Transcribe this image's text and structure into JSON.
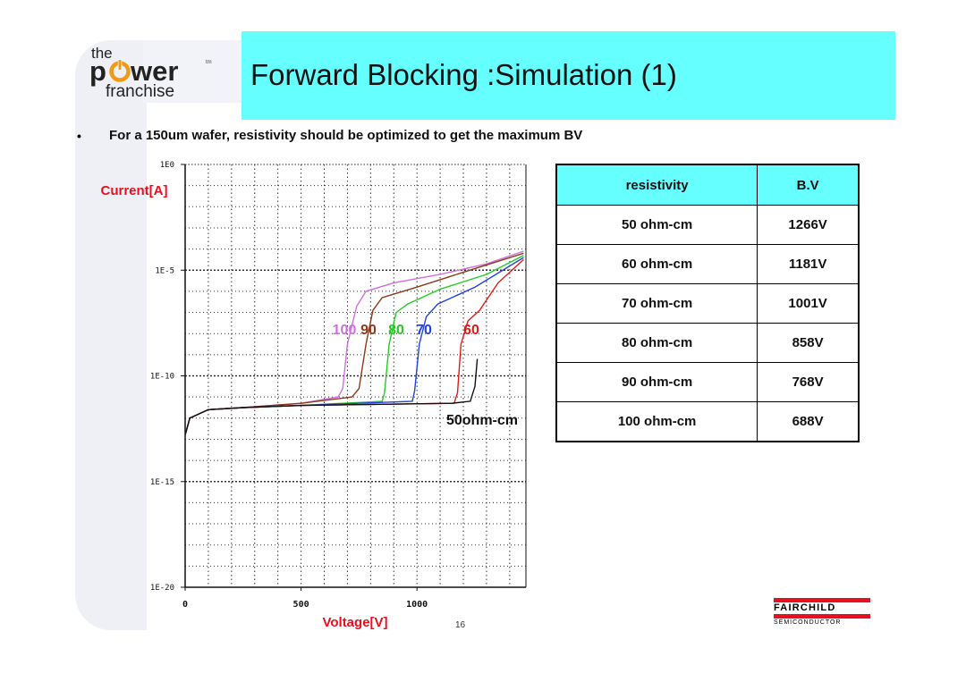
{
  "logo": {
    "line1": "the",
    "line2_a": "p",
    "line2_b": "wer",
    "line3": "franchise",
    "tm": "tm"
  },
  "title": "Forward Blocking :Simulation (1)",
  "bullet": {
    "marker": "•",
    "text": "For a 150um wafer, resistivity should be optimized to get the maximum BV"
  },
  "table": {
    "headers": [
      "resistivity",
      "B.V"
    ],
    "rows": [
      [
        "50 ohm-cm",
        "1266V"
      ],
      [
        "60 ohm-cm",
        "1181V"
      ],
      [
        "70 ohm-cm",
        "1001V"
      ],
      [
        "80 ohm-cm",
        "858V"
      ],
      [
        "90 ohm-cm",
        "768V"
      ],
      [
        "100 ohm-cm",
        "688V"
      ]
    ]
  },
  "page_number": "16",
  "fairchild": {
    "name": "FAIRCHILD",
    "sub": "SEMICONDUCTOR"
  },
  "colors": {
    "title_bg": "#66ffff",
    "axis_label": "#e8101e",
    "brand_red": "#e8101e"
  },
  "chart_data": {
    "type": "line",
    "xlabel": "Voltage[V]",
    "ylabel": "Current[A]",
    "x_ticks": [
      "0",
      "500",
      "1000"
    ],
    "y_ticks": [
      "1E0",
      "1E-5",
      "1E-10",
      "1E-15",
      "1E-20"
    ],
    "xlim": [
      0,
      1470
    ],
    "ylim_log10": [
      -20,
      0
    ],
    "grid": true,
    "y_scale": "log",
    "annotation": "50ohm-cm",
    "series": [
      {
        "name": "100",
        "color": "#d070e0",
        "points": [
          [
            0,
            -12.8
          ],
          [
            20,
            -12
          ],
          [
            100,
            -11.6
          ],
          [
            250,
            -11.5
          ],
          [
            500,
            -11.3
          ],
          [
            660,
            -11.0
          ],
          [
            680,
            -10.6
          ],
          [
            700,
            -8.5
          ],
          [
            740,
            -6.7
          ],
          [
            780,
            -6.0
          ],
          [
            900,
            -5.6
          ],
          [
            1100,
            -5.2
          ],
          [
            1300,
            -4.7
          ],
          [
            1460,
            -4.1
          ]
        ]
      },
      {
        "name": "90",
        "color": "#8b3a1a",
        "points": [
          [
            0,
            -12.8
          ],
          [
            20,
            -12
          ],
          [
            100,
            -11.6
          ],
          [
            250,
            -11.5
          ],
          [
            500,
            -11.3
          ],
          [
            720,
            -11.0
          ],
          [
            750,
            -10.6
          ],
          [
            780,
            -8.5
          ],
          [
            810,
            -6.9
          ],
          [
            850,
            -6.3
          ],
          [
            1000,
            -5.8
          ],
          [
            1200,
            -5.1
          ],
          [
            1460,
            -4.2
          ]
        ]
      },
      {
        "name": "80",
        "color": "#22cc22",
        "points": [
          [
            0,
            -12.8
          ],
          [
            20,
            -12
          ],
          [
            100,
            -11.6
          ],
          [
            250,
            -11.5
          ],
          [
            500,
            -11.4
          ],
          [
            850,
            -11.2
          ],
          [
            860,
            -10.8
          ],
          [
            880,
            -8.5
          ],
          [
            910,
            -7.0
          ],
          [
            960,
            -6.6
          ],
          [
            1100,
            -5.9
          ],
          [
            1300,
            -5.2
          ],
          [
            1460,
            -4.3
          ]
        ]
      },
      {
        "name": "70",
        "color": "#2244dd",
        "points": [
          [
            0,
            -12.8
          ],
          [
            20,
            -12
          ],
          [
            100,
            -11.6
          ],
          [
            250,
            -11.5
          ],
          [
            500,
            -11.4
          ],
          [
            980,
            -11.2
          ],
          [
            990,
            -10.7
          ],
          [
            1010,
            -8.5
          ],
          [
            1040,
            -7.2
          ],
          [
            1090,
            -6.6
          ],
          [
            1250,
            -5.8
          ],
          [
            1460,
            -4.4
          ]
        ]
      },
      {
        "name": "60",
        "color": "#e21a1a",
        "points": [
          [
            0,
            -12.8
          ],
          [
            20,
            -12
          ],
          [
            100,
            -11.6
          ],
          [
            250,
            -11.5
          ],
          [
            500,
            -11.4
          ],
          [
            1160,
            -11.3
          ],
          [
            1175,
            -10.8
          ],
          [
            1190,
            -8.5
          ],
          [
            1220,
            -7.4
          ],
          [
            1270,
            -6.9
          ],
          [
            1350,
            -5.6
          ],
          [
            1460,
            -4.5
          ]
        ]
      },
      {
        "name": "50ohm-cm",
        "color": "#111111",
        "points": [
          [
            0,
            -12.8
          ],
          [
            20,
            -12
          ],
          [
            100,
            -11.6
          ],
          [
            250,
            -11.5
          ],
          [
            500,
            -11.4
          ],
          [
            1150,
            -11.3
          ],
          [
            1230,
            -11.2
          ],
          [
            1250,
            -10.5
          ],
          [
            1260,
            -9.2
          ]
        ]
      }
    ]
  }
}
